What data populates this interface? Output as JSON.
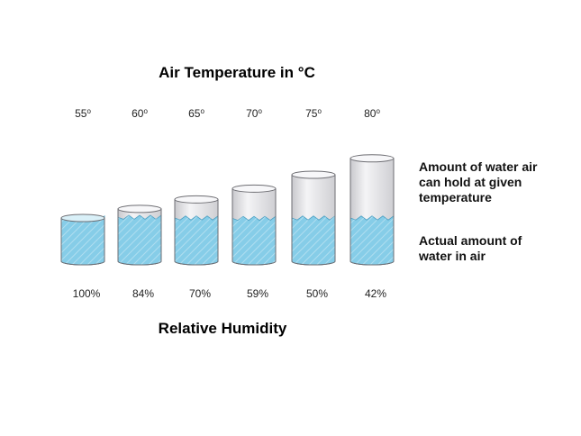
{
  "top_title": "Air Temperature in °C",
  "bottom_title": "Relative Humidity",
  "legend": {
    "capacity_lines": [
      "Amount of water air",
      "can hold at given",
      "temperature"
    ],
    "actual_lines": [
      "Actual amount of",
      "water in air"
    ]
  },
  "columns": [
    {
      "temperature": "55",
      "degree_mark": "o",
      "humidity": "100%",
      "capacity": 1.0,
      "fill_fraction": 1.0
    },
    {
      "temperature": "60",
      "degree_mark": "o",
      "humidity": "84%",
      "capacity": 1.21,
      "fill_fraction": 0.84
    },
    {
      "temperature": "65",
      "degree_mark": "o",
      "humidity": "70%",
      "capacity": 1.43,
      "fill_fraction": 0.7
    },
    {
      "temperature": "70",
      "degree_mark": "o",
      "humidity": "59%",
      "capacity": 1.68,
      "fill_fraction": 0.59
    },
    {
      "temperature": "75",
      "degree_mark": "o",
      "humidity": "50%",
      "capacity": 2.0,
      "fill_fraction": 0.5
    },
    {
      "temperature": "80",
      "degree_mark": "o",
      "humidity": "42%",
      "capacity": 2.38,
      "fill_fraction": 0.42
    }
  ],
  "colors": {
    "water": "#86cde8",
    "water_edge": "#4c9fc2",
    "container": "#e8e8ea",
    "container_edge": "#6e6e73"
  }
}
